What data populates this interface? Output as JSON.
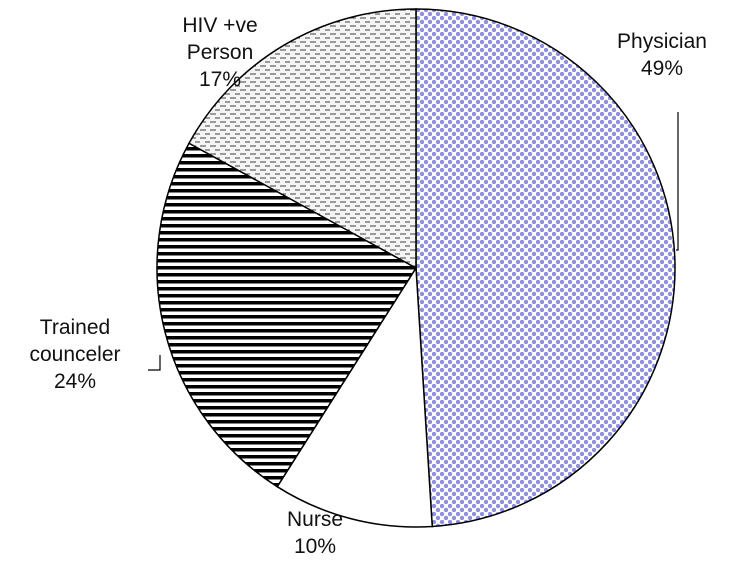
{
  "chart_data": {
    "type": "pie",
    "categories": [
      "Physician",
      "Nurse",
      "Trained counceler",
      "HIV +ve Person"
    ],
    "values": [
      49,
      10,
      24,
      17
    ],
    "value_labels": [
      "49%",
      "10%",
      "24%",
      "17%"
    ],
    "colors": [
      "#8f8fe0",
      "#ffffff",
      "#000000",
      "#404040"
    ]
  }
}
